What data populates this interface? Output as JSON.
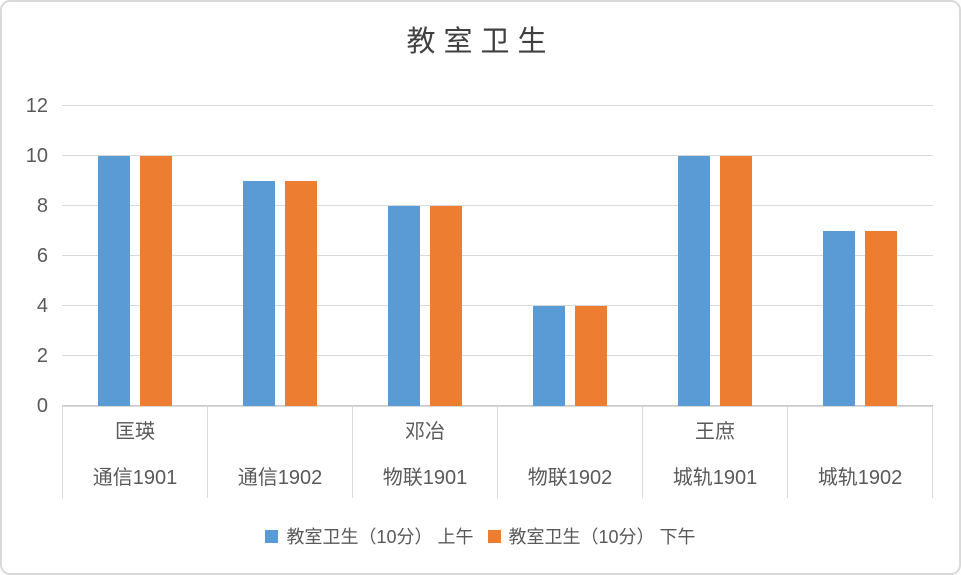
{
  "chart_data": {
    "type": "bar",
    "title": "教室卫生",
    "categories": [
      "通信1901",
      "通信1902",
      "物联1901",
      "物联1902",
      "城轨1901",
      "城轨1902"
    ],
    "category_groups": [
      "匡瑛",
      "",
      "邓冶",
      "",
      "王庶",
      ""
    ],
    "series": [
      {
        "name": "教室卫生（10分） 上午",
        "key": "morning",
        "color": "#5B9BD5",
        "values": [
          10,
          9,
          8,
          4,
          10,
          7
        ]
      },
      {
        "name": "教室卫生（10分） 下午",
        "key": "afternoon",
        "color": "#ED7D31",
        "values": [
          10,
          9,
          8,
          4,
          10,
          7
        ]
      }
    ],
    "ylim": [
      0,
      12
    ],
    "yticks": [
      0,
      2,
      4,
      6,
      8,
      10,
      12
    ],
    "grid": true,
    "legend_position": "bottom"
  },
  "colors": {
    "gridline": "#D9D9D9",
    "axis_line": "#C9C9C9",
    "text": "#595959",
    "title_text": "#404040",
    "chart_border": "#D9D9D9",
    "background": "#FFFFFF"
  }
}
